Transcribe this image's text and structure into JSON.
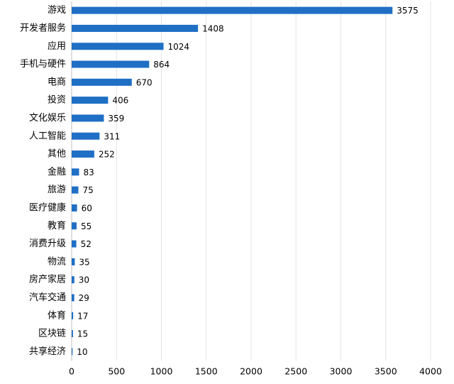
{
  "chart_data": {
    "type": "barh",
    "categories": [
      "游戏",
      "开发者服务",
      "应用",
      "手机与硬件",
      "电商",
      "投资",
      "文化娱乐",
      "人工智能",
      "其他",
      "金融",
      "旅游",
      "医疗健康",
      "教育",
      "消费升级",
      "物流",
      "房产家居",
      "汽车交通",
      "体育",
      "区块链",
      "共享经济"
    ],
    "values": [
      3575,
      1408,
      1024,
      864,
      670,
      406,
      359,
      311,
      252,
      83,
      75,
      60,
      55,
      52,
      35,
      30,
      29,
      17,
      15,
      10
    ],
    "color": "#1f6fc5",
    "xlim": [
      0,
      4000
    ],
    "xticks": [
      0,
      500,
      1000,
      1500,
      2000,
      2500,
      3000,
      3500,
      4000
    ],
    "grid": true
  }
}
